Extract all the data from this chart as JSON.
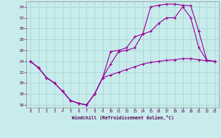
{
  "xlabel": "Windchill (Refroidissement éolien,°C)",
  "xlim": [
    -0.5,
    23.5
  ],
  "ylim": [
    15.5,
    35.0
  ],
  "yticks": [
    16,
    18,
    20,
    22,
    24,
    26,
    28,
    30,
    32,
    34
  ],
  "xticks": [
    0,
    1,
    2,
    3,
    4,
    5,
    6,
    7,
    8,
    9,
    10,
    11,
    12,
    13,
    14,
    15,
    16,
    17,
    18,
    19,
    20,
    21,
    22,
    23
  ],
  "bg_color": "#c8ecec",
  "grid_color": "#a8d4d4",
  "line_color": "#990099",
  "lines": [
    {
      "x": [
        0,
        1,
        2,
        3,
        4,
        5,
        6,
        7,
        8,
        9,
        10,
        11,
        12,
        13,
        14,
        15,
        16,
        17,
        18,
        19,
        20,
        21,
        22,
        23
      ],
      "y": [
        24,
        22.8,
        21.0,
        20.0,
        18.5,
        16.8,
        16.3,
        16.0,
        18.0,
        21.0,
        21.5,
        22.0,
        22.5,
        23.0,
        23.5,
        23.8,
        24.0,
        24.2,
        24.3,
        24.5,
        24.5,
        24.3,
        24.1,
        24.0
      ]
    },
    {
      "x": [
        0,
        1,
        2,
        3,
        4,
        5,
        6,
        7,
        8,
        9,
        10,
        11,
        12,
        13,
        14,
        15,
        16,
        17,
        18,
        19,
        20,
        21,
        22,
        23
      ],
      "y": [
        24,
        22.8,
        21.0,
        20.0,
        18.5,
        16.8,
        16.3,
        16.0,
        18.0,
        21.0,
        25.8,
        26.0,
        26.5,
        28.5,
        29.0,
        29.5,
        31.0,
        32.0,
        32.0,
        34.0,
        32.0,
        26.5,
        24.2,
        24.0
      ]
    },
    {
      "x": [
        0,
        1,
        2,
        3,
        4,
        5,
        6,
        7,
        8,
        9,
        10,
        11,
        12,
        13,
        14,
        15,
        16,
        17,
        18,
        19,
        20,
        21,
        22,
        23
      ],
      "y": [
        24,
        22.8,
        21.0,
        20.0,
        18.5,
        16.8,
        16.3,
        16.0,
        18.0,
        21.0,
        23.5,
        25.8,
        26.0,
        26.5,
        29.0,
        34.0,
        34.3,
        34.5,
        34.5,
        34.3,
        34.2,
        29.5,
        24.2,
        24.0
      ]
    }
  ]
}
